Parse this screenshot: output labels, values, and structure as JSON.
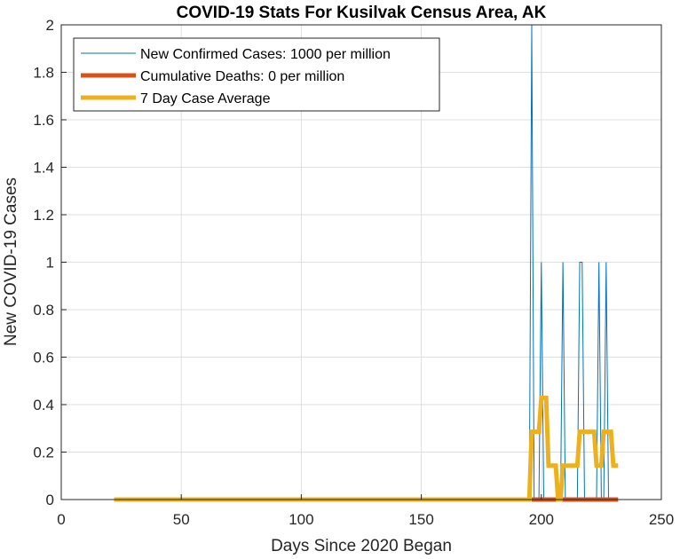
{
  "chart_data": {
    "type": "line",
    "title": "COVID-19 Stats For Kusilvak Census Area, AK",
    "xlabel": "Days Since 2020 Began",
    "ylabel": "New COVID-19 Cases",
    "xlim": [
      0,
      250
    ],
    "ylim": [
      0,
      2
    ],
    "xticks": [
      0,
      50,
      100,
      150,
      200,
      250
    ],
    "xtick_labels": [
      "0",
      "50",
      "100",
      "150",
      "200",
      "250"
    ],
    "yticks": [
      0,
      0.2,
      0.4,
      0.6,
      0.8,
      1,
      1.2,
      1.4,
      1.6,
      1.8,
      2
    ],
    "ytick_labels": [
      "0",
      "0.2",
      "0.4",
      "0.6",
      "0.8",
      "1",
      "1.2",
      "1.4",
      "1.6",
      "1.8",
      "2"
    ],
    "grid": true,
    "legend_position": "top-left",
    "series": [
      {
        "name": "New Confirmed Cases: 1000 per million",
        "color": "#0072BD",
        "line_style": "thin",
        "points": [
          [
            22,
            0
          ],
          [
            195,
            0
          ],
          [
            196,
            2
          ],
          [
            197,
            0
          ],
          [
            199,
            0
          ],
          [
            200,
            1
          ],
          [
            201,
            0
          ],
          [
            208,
            0
          ],
          [
            209,
            1
          ],
          [
            210,
            0
          ],
          [
            215,
            0
          ],
          [
            216,
            1
          ],
          [
            217,
            1
          ],
          [
            218,
            0
          ],
          [
            223,
            0
          ],
          [
            224,
            1
          ],
          [
            225,
            0
          ],
          [
            226,
            0
          ],
          [
            227,
            1
          ],
          [
            228,
            0
          ],
          [
            232,
            0
          ]
        ]
      },
      {
        "name": "Cumulative Deaths: 0 per million",
        "color": "#D95319",
        "line_style": "thick",
        "points": [
          [
            196,
            0
          ],
          [
            232,
            0
          ]
        ]
      },
      {
        "name": "7 Day Case Average",
        "color": "#EDB120",
        "line_style": "thick",
        "points": [
          [
            22,
            0
          ],
          [
            195,
            0
          ],
          [
            196,
            0.2857
          ],
          [
            199,
            0.2857
          ],
          [
            200,
            0.4286
          ],
          [
            202,
            0.4286
          ],
          [
            203,
            0.1429
          ],
          [
            206,
            0.1429
          ],
          [
            207,
            0
          ],
          [
            208,
            0
          ],
          [
            209,
            0.1429
          ],
          [
            215,
            0.1429
          ],
          [
            216,
            0.2857
          ],
          [
            222,
            0.2857
          ],
          [
            223,
            0.1429
          ],
          [
            225,
            0.1429
          ],
          [
            226,
            0.2857
          ],
          [
            229,
            0.2857
          ],
          [
            230,
            0.1429
          ],
          [
            232,
            0.1429
          ]
        ]
      }
    ]
  }
}
